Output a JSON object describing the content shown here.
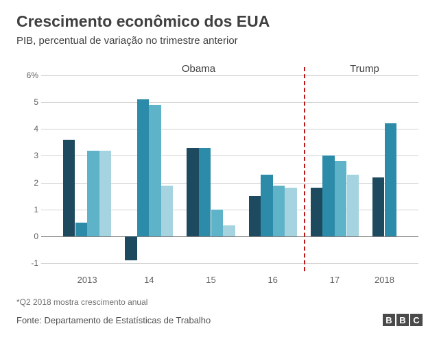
{
  "title": "Crescimento econômico dos EUA",
  "subtitle": "PIB, percentual de variação no trimestre anterior",
  "chart": {
    "type": "bar",
    "ylim": [
      -1.3,
      6.3
    ],
    "yticks": [
      -1,
      0,
      1,
      2,
      3,
      4,
      5,
      6
    ],
    "ytick_labels": [
      "-1",
      "0",
      "1",
      "2",
      "3",
      "4",
      "5",
      "6%"
    ],
    "grid_color": "#d0d0d0",
    "zero_color": "#808080",
    "background": "#ffffff",
    "years": [
      {
        "label": "2013",
        "quarters": [
          3.6,
          0.5,
          3.2,
          3.2
        ]
      },
      {
        "label": "14",
        "quarters": [
          -0.9,
          5.1,
          4.9,
          1.9
        ]
      },
      {
        "label": "15",
        "quarters": [
          3.3,
          3.3,
          1.0,
          0.4
        ]
      },
      {
        "label": "16",
        "quarters": [
          1.5,
          2.3,
          1.9,
          1.8
        ]
      },
      {
        "label": "17",
        "quarters": [
          1.8,
          3.0,
          2.8,
          2.3
        ]
      },
      {
        "label": "2018",
        "quarters": [
          2.2,
          4.2
        ]
      }
    ],
    "quarter_colors": [
      "#1e4a5f",
      "#2b8ba8",
      "#5eb3c9",
      "#a5d4e0"
    ],
    "bar_width_pct": 3.2,
    "year_gap_pct": 3.6,
    "groups": [
      {
        "label": "Obama",
        "center_year_index": 1.8
      },
      {
        "label": "Trump",
        "center_year_index": 4.6
      }
    ],
    "divider_after_year_index": 3,
    "divider_color": "#bb1919"
  },
  "footnote": "*Q2 2018 mostra crescimento anual",
  "source": "Fonte: Departamento de Estatísticas de Trabalho",
  "logo": [
    "B",
    "B",
    "C"
  ]
}
